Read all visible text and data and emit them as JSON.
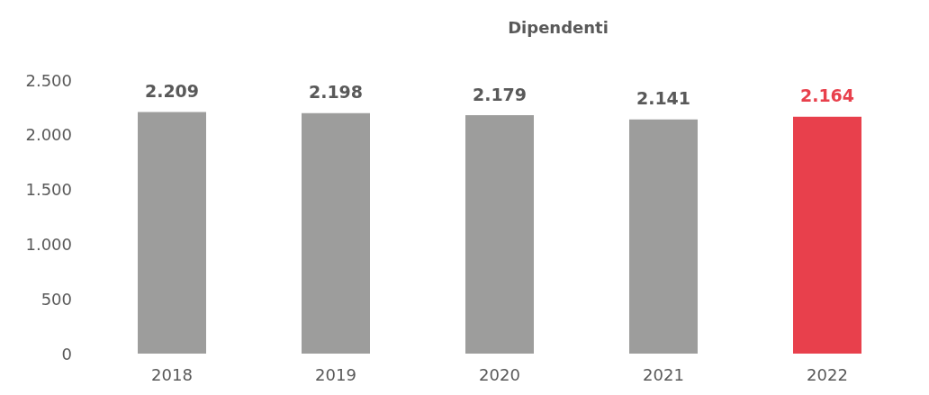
{
  "chart_data": {
    "type": "bar",
    "title": "Dipendenti",
    "categories": [
      "2018",
      "2019",
      "2020",
      "2021",
      "2022"
    ],
    "values": [
      2209,
      2198,
      2179,
      2141,
      2164
    ],
    "colors": [
      "#9d9d9c",
      "#9d9d9c",
      "#9d9d9c",
      "#9d9d9c",
      "#e8404c"
    ],
    "value_labels": [
      "2.209",
      "2.198",
      "2.179",
      "2.141",
      "2.164"
    ],
    "ylim": [
      0,
      2500
    ],
    "yticks": [
      {
        "value": 0,
        "label": "0"
      },
      {
        "value": 500,
        "label": "500"
      },
      {
        "value": 1000,
        "label": "1.000"
      },
      {
        "value": 1500,
        "label": "1.500"
      },
      {
        "value": 2000,
        "label": "2.000"
      },
      {
        "value": 2500,
        "label": "2.500"
      }
    ],
    "grid": false
  }
}
